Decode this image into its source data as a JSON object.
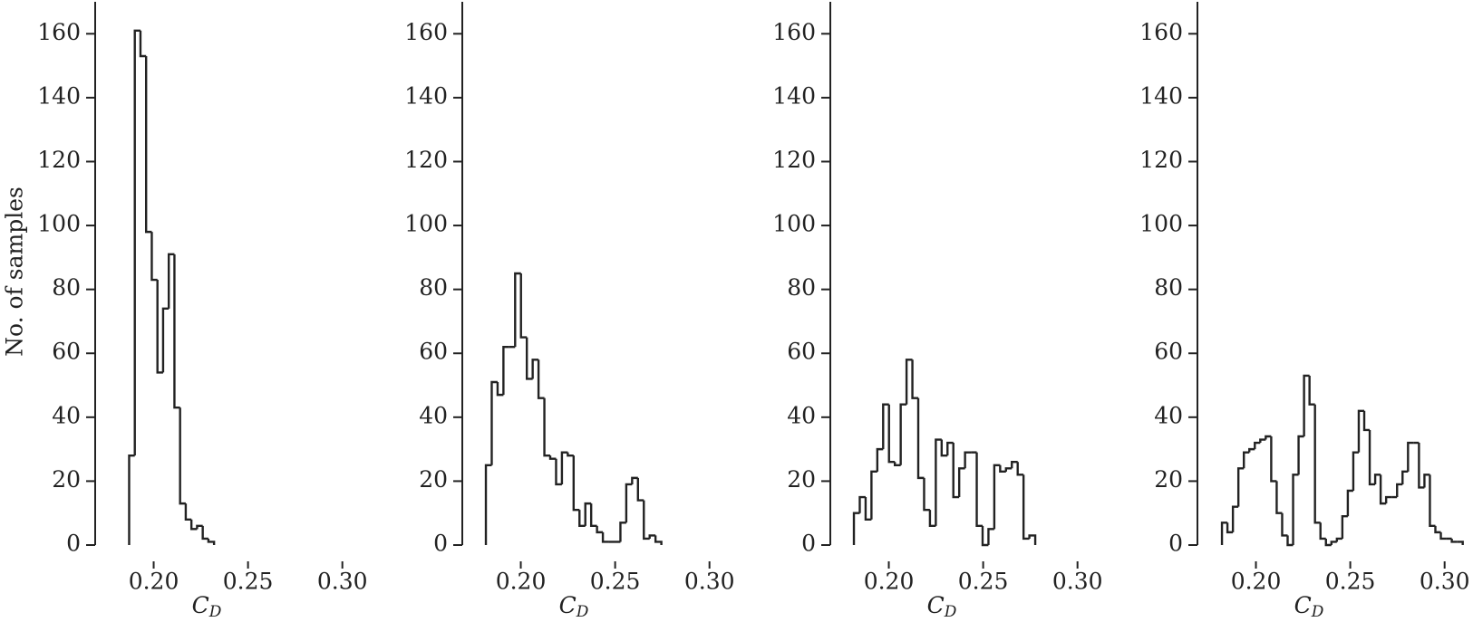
{
  "chart_data": [
    {
      "type": "histogram",
      "ylabel": "No. of samples",
      "xlabel_symbol": "C",
      "xlabel_subscript": "D",
      "bins": [
        0.187,
        0.19,
        0.193,
        0.196,
        0.199,
        0.202,
        0.205,
        0.208,
        0.211,
        0.214,
        0.217,
        0.22,
        0.223,
        0.226,
        0.229,
        0.232
      ],
      "values": [
        28,
        161,
        153,
        98,
        83,
        54,
        74,
        91,
        43,
        13,
        8,
        5,
        6,
        2,
        1
      ],
      "xlim": [
        0.169,
        0.316
      ],
      "ylim": [
        0,
        170
      ],
      "xticks": [
        {
          "value": 0.2,
          "label": "0.20"
        },
        {
          "value": 0.25,
          "label": "0.25"
        },
        {
          "value": 0.3,
          "label": "0.30"
        }
      ],
      "yticks": [
        0,
        20,
        40,
        60,
        80,
        100,
        120,
        140,
        160
      ],
      "color": "#222222"
    },
    {
      "type": "histogram",
      "xlabel_symbol": "C",
      "xlabel_subscript": "D",
      "bins": [
        0.1815,
        0.1846,
        0.1877,
        0.1908,
        0.1939,
        0.197,
        0.2001,
        0.2032,
        0.2063,
        0.2094,
        0.2125,
        0.2156,
        0.2187,
        0.2218,
        0.2249,
        0.228,
        0.2311,
        0.2342,
        0.2373,
        0.2404,
        0.2435,
        0.2466,
        0.2497,
        0.2528,
        0.2559,
        0.259,
        0.2621,
        0.2652,
        0.2683,
        0.2714,
        0.2745
      ],
      "values": [
        25,
        51,
        47,
        62,
        62,
        85,
        65,
        52,
        58,
        46,
        28,
        27,
        19,
        29,
        28,
        11,
        6,
        13,
        6,
        4,
        1,
        1,
        1,
        7,
        19,
        21,
        14,
        2,
        3,
        1
      ],
      "xlim": [
        0.169,
        0.316
      ],
      "ylim": [
        0,
        170
      ],
      "xticks": [
        {
          "value": 0.2,
          "label": "0.20"
        },
        {
          "value": 0.25,
          "label": "0.25"
        },
        {
          "value": 0.3,
          "label": "0.30"
        }
      ],
      "yticks": [
        0,
        20,
        40,
        60,
        80,
        100,
        120,
        140,
        160
      ],
      "color": "#222222"
    },
    {
      "type": "histogram",
      "xlabel_symbol": "C",
      "xlabel_subscript": "D",
      "bins": [
        0.1815,
        0.1846,
        0.1877,
        0.1908,
        0.1939,
        0.197,
        0.2001,
        0.2032,
        0.2063,
        0.2094,
        0.2125,
        0.2156,
        0.2187,
        0.2218,
        0.2249,
        0.228,
        0.2311,
        0.2342,
        0.2373,
        0.2404,
        0.2435,
        0.2466,
        0.2497,
        0.2528,
        0.2559,
        0.259,
        0.2621,
        0.2652,
        0.2683,
        0.2714,
        0.2745,
        0.2776
      ],
      "values": [
        10,
        15,
        8,
        23,
        30,
        44,
        26,
        25,
        44,
        58,
        46,
        21,
        11,
        6,
        33,
        28,
        32,
        15,
        24,
        29,
        29,
        6,
        0,
        5,
        25,
        23,
        24,
        26,
        22,
        2,
        3
      ],
      "xlim": [
        0.169,
        0.316
      ],
      "ylim": [
        0,
        170
      ],
      "xticks": [
        {
          "value": 0.2,
          "label": "0.20"
        },
        {
          "value": 0.25,
          "label": "0.25"
        },
        {
          "value": 0.3,
          "label": "0.30"
        }
      ],
      "yticks": [
        0,
        20,
        40,
        60,
        80,
        100,
        120,
        140,
        160
      ],
      "color": "#222222"
    },
    {
      "type": "histogram",
      "xlabel_symbol": "C",
      "xlabel_subscript": "D",
      "bins": [
        0.182,
        0.1849,
        0.1878,
        0.1907,
        0.1936,
        0.1965,
        0.1994,
        0.2023,
        0.2052,
        0.2081,
        0.211,
        0.2139,
        0.2168,
        0.2197,
        0.2226,
        0.2255,
        0.2284,
        0.2313,
        0.2342,
        0.2371,
        0.24,
        0.2429,
        0.2458,
        0.2487,
        0.2516,
        0.2545,
        0.2574,
        0.2603,
        0.2632,
        0.2661,
        0.269,
        0.2719,
        0.2748,
        0.2777,
        0.2806,
        0.2835,
        0.2864,
        0.2893,
        0.2922,
        0.2951,
        0.298,
        0.3009,
        0.3038,
        0.3067,
        0.3096
      ],
      "values": [
        7,
        4,
        12,
        24,
        29,
        30,
        32,
        33,
        34,
        20,
        10,
        3,
        0,
        22,
        34,
        53,
        44,
        7,
        2,
        0,
        1,
        2,
        9,
        17,
        29,
        42,
        36,
        19,
        22,
        13,
        15,
        15,
        19,
        23,
        32,
        32,
        18,
        22,
        6,
        4,
        2,
        2,
        1,
        1
      ],
      "xlim": [
        0.169,
        0.316
      ],
      "ylim": [
        0,
        170
      ],
      "xticks": [
        {
          "value": 0.2,
          "label": "0.20"
        },
        {
          "value": 0.25,
          "label": "0.25"
        },
        {
          "value": 0.3,
          "label": "0.30"
        }
      ],
      "yticks": [
        0,
        20,
        40,
        60,
        80,
        100,
        120,
        140,
        160
      ],
      "color": "#222222"
    }
  ]
}
